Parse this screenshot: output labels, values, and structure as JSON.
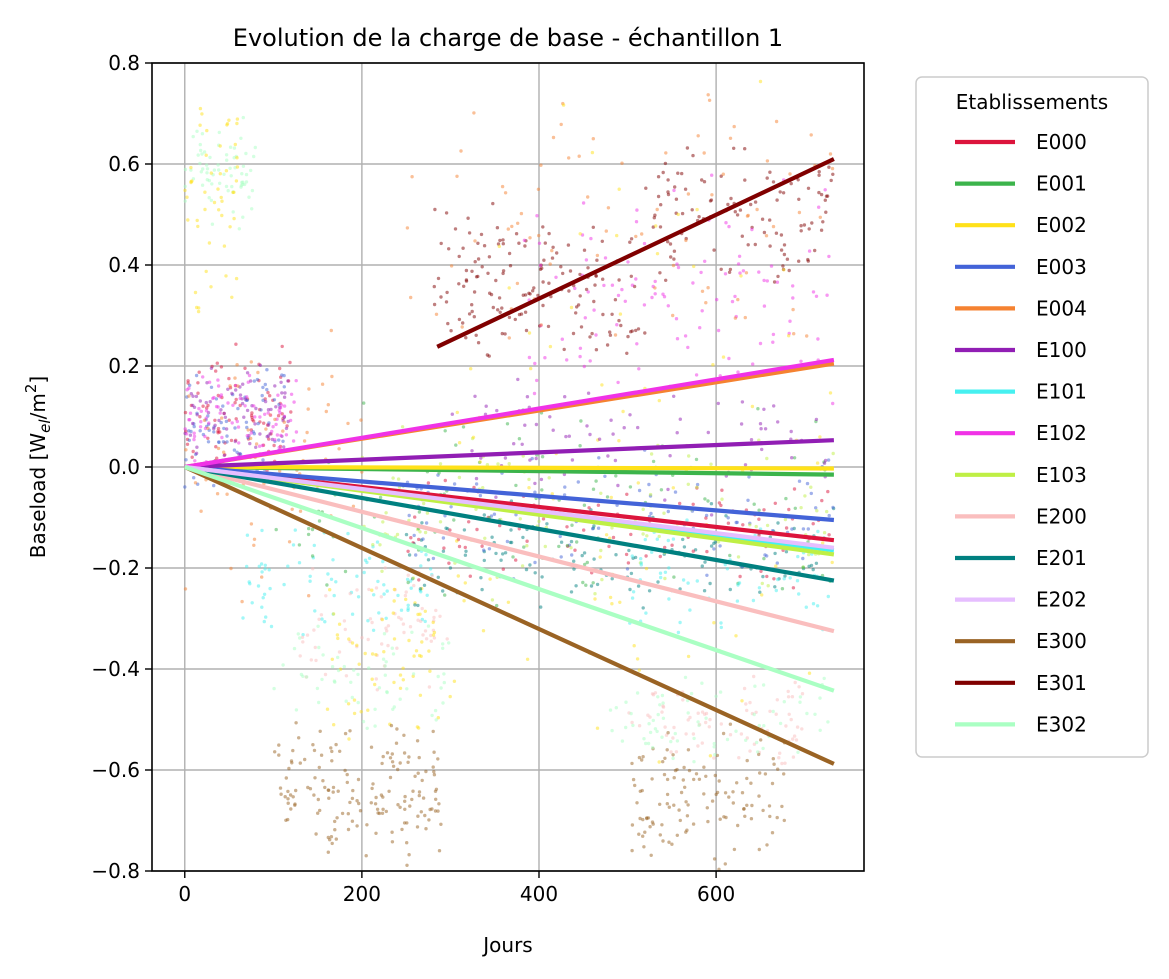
{
  "chart_data": {
    "type": "line",
    "title": "Evolution de la charge de base - échantillon 1",
    "xlabel": "Jours",
    "ylabel_main": "Baseload [W",
    "ylabel_sub": "el",
    "ylabel_mid": "/m",
    "ylabel_sup": "2",
    "ylabel_end": "]",
    "xlim": [
      -37,
      767
    ],
    "ylim": [
      -0.8,
      0.8
    ],
    "xticks": [
      0,
      200,
      400,
      600
    ],
    "xtick_labels": [
      "0",
      "200",
      "400",
      "600"
    ],
    "yticks": [
      -0.8,
      -0.6,
      -0.4,
      -0.2,
      0.0,
      0.2,
      0.4,
      0.6,
      0.8
    ],
    "ytick_labels": [
      "−0.8",
      "−0.6",
      "−0.4",
      "−0.2",
      "0.0",
      "0.2",
      "0.4",
      "0.6",
      "0.8"
    ],
    "grid": true,
    "legend_title": "Etablissements",
    "legend_position": "outside-right",
    "series": [
      {
        "name": "E000",
        "color": "#dc143c",
        "x": [
          0,
          733
        ],
        "y": [
          0,
          -0.145
        ]
      },
      {
        "name": "E001",
        "color": "#3cb44b",
        "x": [
          0,
          733
        ],
        "y": [
          0,
          -0.015
        ]
      },
      {
        "name": "E002",
        "color": "#ffe119",
        "x": [
          0,
          733
        ],
        "y": [
          0,
          -0.003
        ]
      },
      {
        "name": "E003",
        "color": "#4363d8",
        "x": [
          0,
          733
        ],
        "y": [
          0,
          -0.105
        ]
      },
      {
        "name": "E004",
        "color": "#f58231",
        "x": [
          0,
          733
        ],
        "y": [
          0,
          0.205
        ]
      },
      {
        "name": "E100",
        "color": "#911eb4",
        "x": [
          0,
          733
        ],
        "y": [
          0,
          0.053
        ]
      },
      {
        "name": "E101",
        "color": "#46f0f0",
        "x": [
          0,
          733
        ],
        "y": [
          0,
          -0.165
        ]
      },
      {
        "name": "E102",
        "color": "#f032e6",
        "x": [
          0,
          733
        ],
        "y": [
          0,
          0.212
        ]
      },
      {
        "name": "E103",
        "color": "#bfef45",
        "x": [
          0,
          733
        ],
        "y": [
          0,
          -0.173
        ]
      },
      {
        "name": "E200",
        "color": "#fabebe",
        "x": [
          0,
          733
        ],
        "y": [
          0,
          -0.325
        ]
      },
      {
        "name": "E201",
        "color": "#008080",
        "x": [
          0,
          733
        ],
        "y": [
          0,
          -0.225
        ]
      },
      {
        "name": "E202",
        "color": "#e6beff",
        "x": [
          0,
          733
        ],
        "y": [
          0,
          -0.16
        ]
      },
      {
        "name": "E300",
        "color": "#9a6324",
        "x": [
          0,
          733
        ],
        "y": [
          0,
          -0.588
        ]
      },
      {
        "name": "E301",
        "color": "#800000",
        "x": [
          285,
          733
        ],
        "y": [
          0.238,
          0.61
        ]
      },
      {
        "name": "E302",
        "color": "#aaffc3",
        "x": [
          0,
          733
        ],
        "y": [
          0,
          -0.443
        ]
      }
    ],
    "scatter_clusters": [
      {
        "series": "E302",
        "x": [
          0,
          80
        ],
        "y": [
          0.45,
          0.72
        ],
        "n": 70
      },
      {
        "series": "E002",
        "x": [
          0,
          60
        ],
        "y": [
          0.25,
          0.8
        ],
        "n": 50
      },
      {
        "series": "E000",
        "x": [
          0,
          120
        ],
        "y": [
          -0.05,
          0.25
        ],
        "n": 90
      },
      {
        "series": "E003",
        "x": [
          0,
          120
        ],
        "y": [
          -0.05,
          0.22
        ],
        "n": 80
      },
      {
        "series": "E100",
        "x": [
          0,
          120
        ],
        "y": [
          0.0,
          0.22
        ],
        "n": 70
      },
      {
        "series": "E102",
        "x": [
          0,
          130
        ],
        "y": [
          0.0,
          0.2
        ],
        "n": 80
      },
      {
        "series": "E004",
        "x": [
          0,
          200
        ],
        "y": [
          -0.3,
          0.3
        ],
        "n": 70
      },
      {
        "series": "E101",
        "x": [
          60,
          280
        ],
        "y": [
          -0.35,
          -0.1
        ],
        "n": 80
      },
      {
        "series": "E200",
        "x": [
          130,
          300
        ],
        "y": [
          -0.45,
          -0.18
        ],
        "n": 70
      },
      {
        "series": "E002",
        "x": [
          160,
          300
        ],
        "y": [
          -0.55,
          -0.2
        ],
        "n": 60
      },
      {
        "series": "E300",
        "x": [
          100,
          290
        ],
        "y": [
          -0.8,
          -0.5
        ],
        "n": 160
      },
      {
        "series": "E302",
        "x": [
          100,
          300
        ],
        "y": [
          -0.55,
          -0.3
        ],
        "n": 60
      },
      {
        "series": "E301",
        "x": [
          280,
          380
        ],
        "y": [
          0.2,
          0.55
        ],
        "n": 70
      },
      {
        "series": "E301",
        "x": [
          380,
          520
        ],
        "y": [
          0.2,
          0.5
        ],
        "n": 80
      },
      {
        "series": "E301",
        "x": [
          520,
          733
        ],
        "y": [
          0.35,
          0.65
        ],
        "n": 110
      },
      {
        "series": "E102",
        "x": [
          380,
          733
        ],
        "y": [
          0.1,
          0.6
        ],
        "n": 110
      },
      {
        "series": "E004",
        "x": [
          250,
          733
        ],
        "y": [
          0.2,
          0.8
        ],
        "n": 80
      },
      {
        "series": "E201",
        "x": [
          250,
          733
        ],
        "y": [
          -0.3,
          -0.05
        ],
        "n": 130
      },
      {
        "series": "E003",
        "x": [
          250,
          733
        ],
        "y": [
          -0.25,
          0.05
        ],
        "n": 100
      },
      {
        "series": "E000",
        "x": [
          250,
          733
        ],
        "y": [
          -0.25,
          0.0
        ],
        "n": 100
      },
      {
        "series": "E103",
        "x": [
          200,
          733
        ],
        "y": [
          -0.3,
          0.1
        ],
        "n": 110
      },
      {
        "series": "E001",
        "x": [
          100,
          733
        ],
        "y": [
          -0.3,
          0.15
        ],
        "n": 110
      },
      {
        "series": "E101",
        "x": [
          500,
          733
        ],
        "y": [
          -0.35,
          -0.1
        ],
        "n": 60
      },
      {
        "series": "E200",
        "x": [
          500,
          700
        ],
        "y": [
          -0.6,
          -0.4
        ],
        "n": 80
      },
      {
        "series": "E300",
        "x": [
          500,
          680
        ],
        "y": [
          -0.8,
          -0.5
        ],
        "n": 120
      },
      {
        "series": "E302",
        "x": [
          480,
          733
        ],
        "y": [
          -0.6,
          -0.4
        ],
        "n": 70
      },
      {
        "series": "E002",
        "x": [
          300,
          733
        ],
        "y": [
          -0.8,
          0.8
        ],
        "n": 90
      },
      {
        "series": "E100",
        "x": [
          300,
          733
        ],
        "y": [
          -0.1,
          0.2
        ],
        "n": 80
      }
    ]
  }
}
